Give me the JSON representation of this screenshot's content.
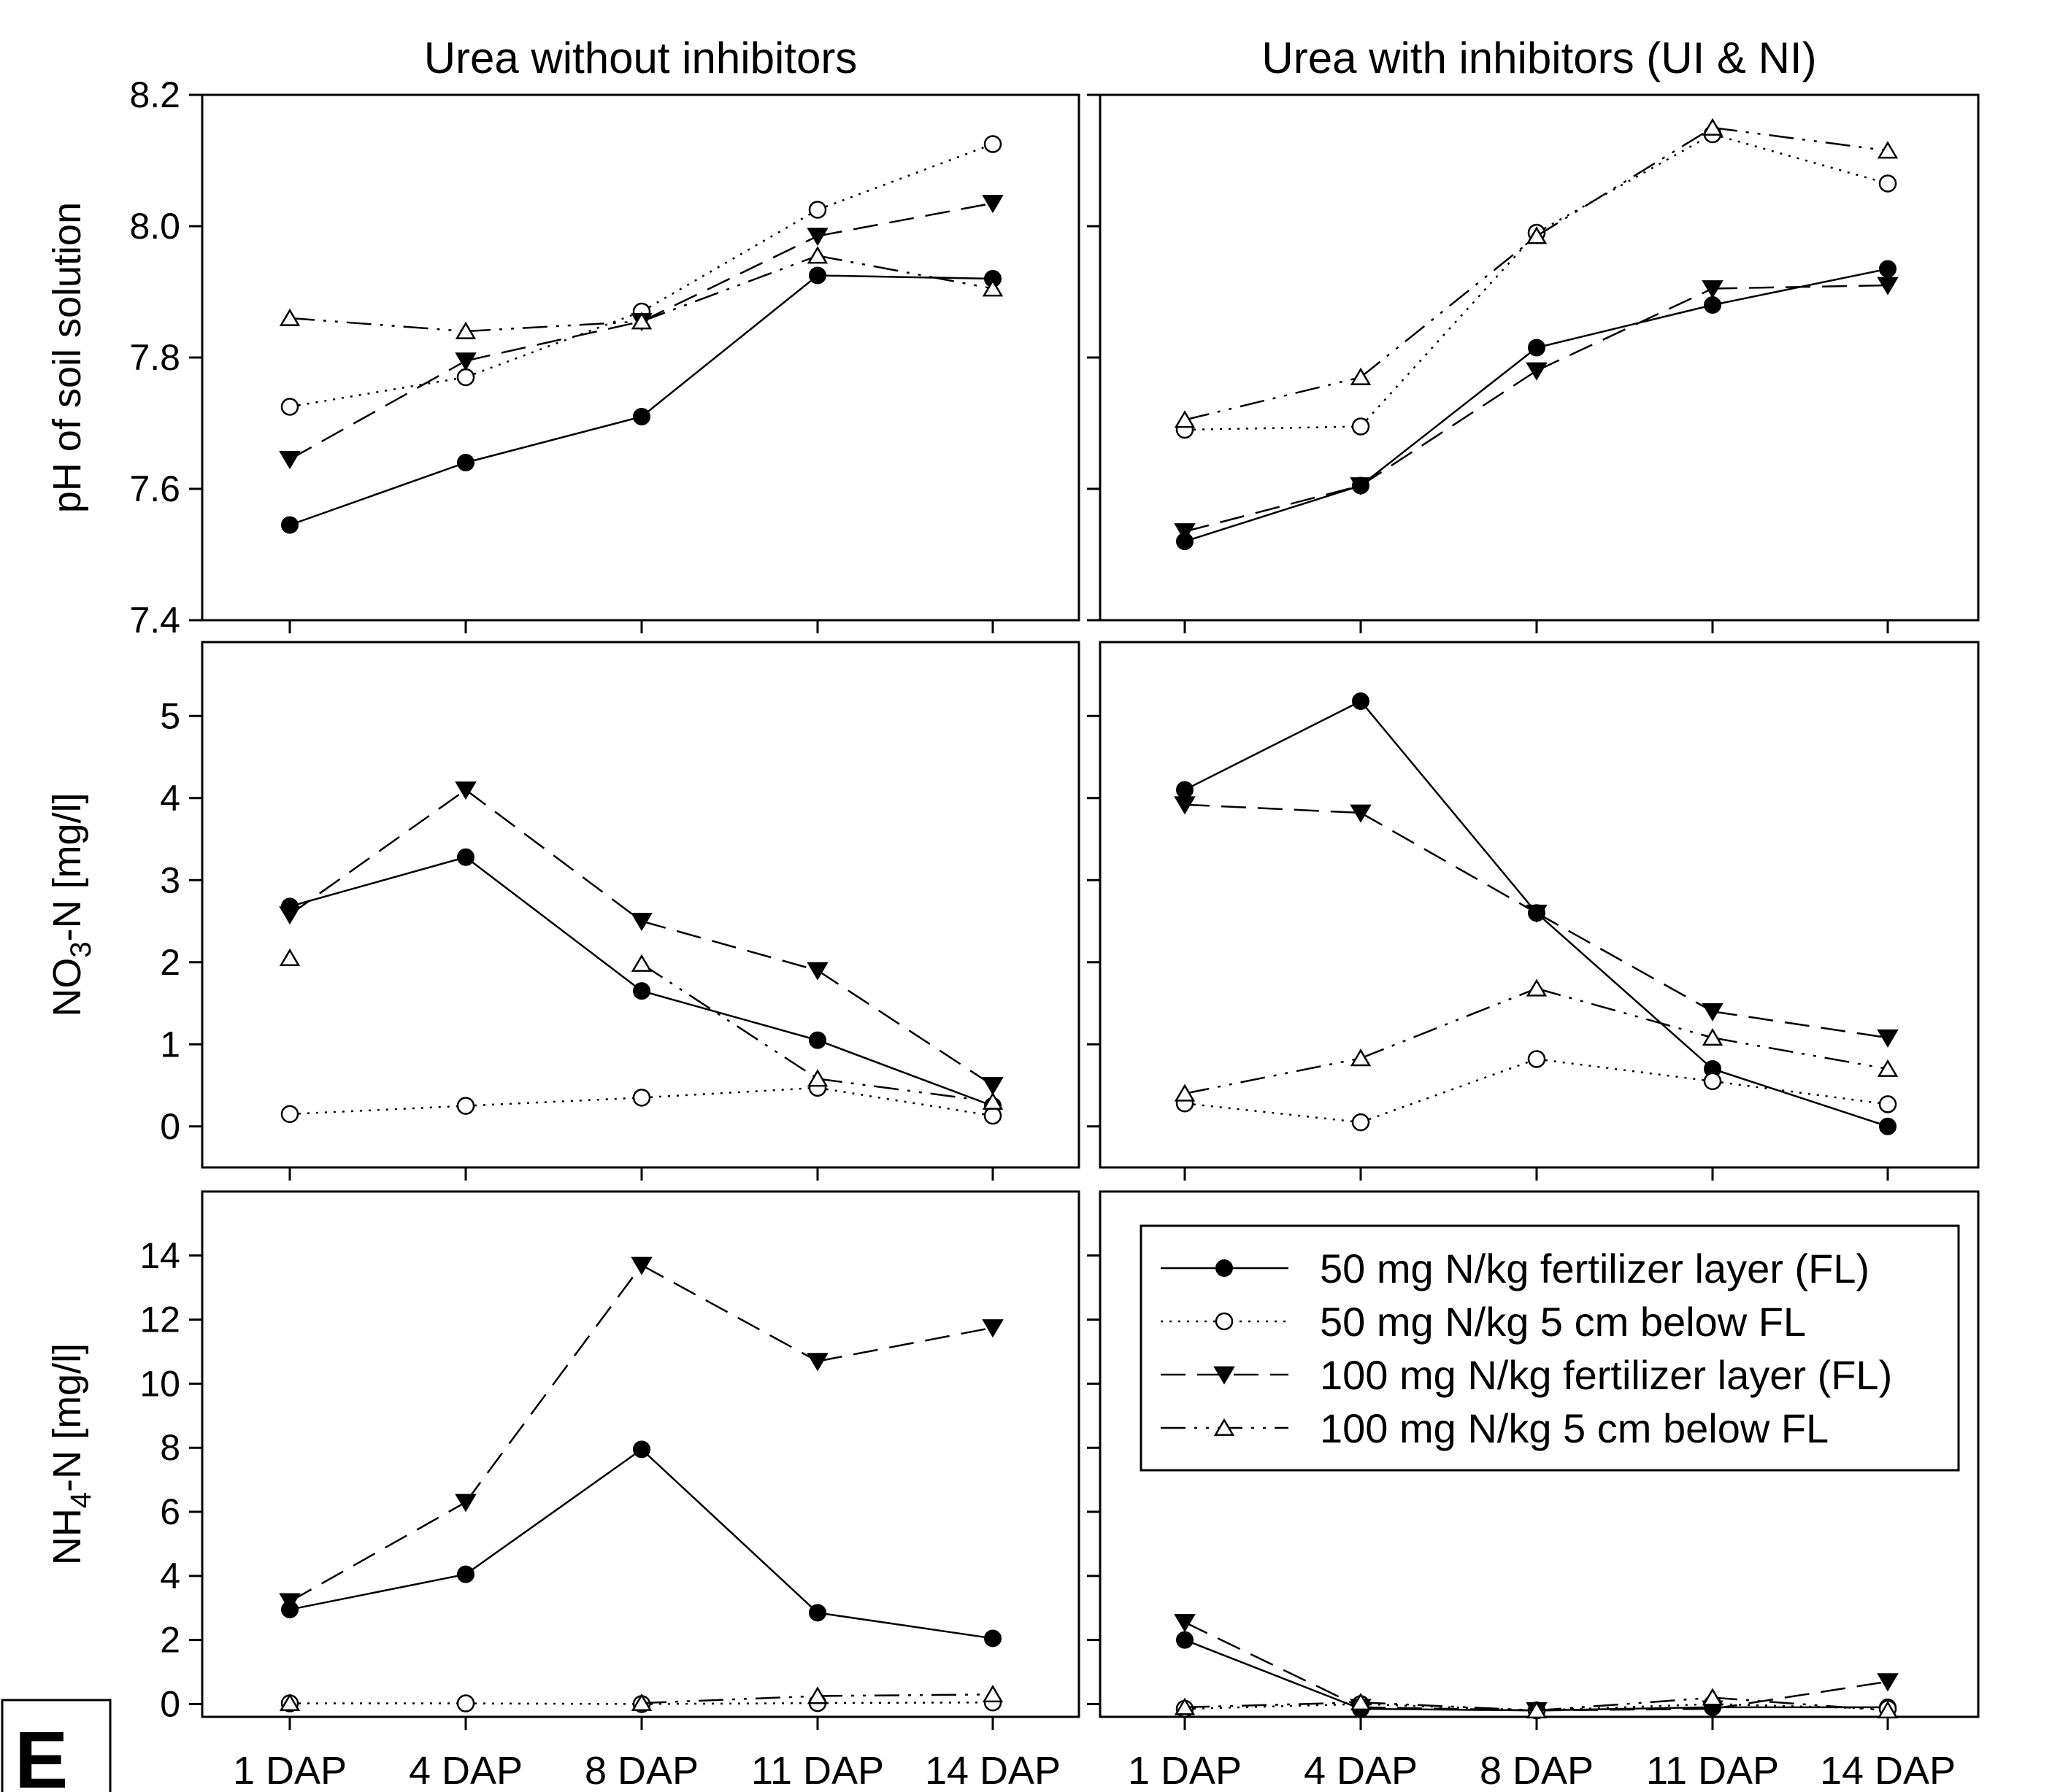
{
  "panel_letter": "E",
  "chart_data": {
    "type": "line",
    "columns": [
      {
        "title": "Urea without inhibitors"
      },
      {
        "title": "Urea with inhibitors (UI & NI)"
      }
    ],
    "x": [
      "1 DAP",
      "4 DAP",
      "8 DAP",
      "11 DAP",
      "14 DAP"
    ],
    "legend": {
      "placement": "inside, bottom-right panel, top",
      "entries": [
        {
          "name": "50 mg N/kg fertilizer layer (FL)",
          "line": "solid",
          "marker": "filled-circle"
        },
        {
          "name": "50 mg N/kg 5 cm below FL",
          "line": "dotted",
          "marker": "open-circle"
        },
        {
          "name": "100 mg N/kg fertilizer layer (FL)",
          "line": "dashed",
          "marker": "filled-triangle-down"
        },
        {
          "name": "100 mg N/kg 5 cm below FL",
          "line": "dash-dot-dot",
          "marker": "open-triangle-up"
        }
      ]
    },
    "rows": [
      {
        "ylabel": "pH of soil solution",
        "ylim": [
          7.4,
          8.2
        ],
        "yticks": [
          "7.4",
          "7.6",
          "7.8",
          "8.0",
          "8.2"
        ],
        "panels": [
          {
            "series": [
              {
                "values": [
                  7.545,
                  7.64,
                  7.71,
                  7.925,
                  7.92
                ]
              },
              {
                "values": [
                  7.725,
                  7.77,
                  7.87,
                  8.025,
                  8.125
                ]
              },
              {
                "values": [
                  7.645,
                  7.795,
                  7.855,
                  7.985,
                  8.035
                ]
              },
              {
                "values": [
                  7.86,
                  7.84,
                  7.855,
                  7.955,
                  7.905
                ]
              }
            ]
          },
          {
            "series": [
              {
                "values": [
                  7.52,
                  7.605,
                  7.815,
                  7.88,
                  7.935
                ]
              },
              {
                "values": [
                  7.69,
                  7.695,
                  7.99,
                  8.14,
                  8.065
                ]
              },
              {
                "values": [
                  7.535,
                  7.605,
                  7.78,
                  7.905,
                  7.91
                ]
              },
              {
                "values": [
                  7.705,
                  7.77,
                  7.985,
                  8.15,
                  8.115
                ]
              }
            ]
          }
        ]
      },
      {
        "ylabel_main": "NO",
        "ylabel_sub": "3",
        "ylabel_rest": "-N [mg/l]",
        "ylim": [
          -0.5,
          5.9
        ],
        "yticks": [
          "0",
          "1",
          "2",
          "3",
          "4",
          "5"
        ],
        "panels": [
          {
            "series": [
              {
                "values": [
                  2.68,
                  3.28,
                  1.65,
                  1.05,
                  0.25
                ]
              },
              {
                "values": [
                  0.15,
                  0.25,
                  0.35,
                  0.47,
                  0.13
                ]
              },
              {
                "values": [
                  2.58,
                  4.1,
                  2.5,
                  1.9,
                  0.5
                ]
              },
              {
                "values": [
                  2.05,
                  null,
                  1.98,
                  0.58,
                  0.3
                ]
              }
            ]
          },
          {
            "series": [
              {
                "values": [
                  4.1,
                  5.18,
                  2.6,
                  0.7,
                  0.0
                ]
              },
              {
                "values": [
                  0.28,
                  0.05,
                  0.82,
                  0.55,
                  0.27
                ]
              },
              {
                "values": [
                  3.92,
                  3.82,
                  2.6,
                  1.4,
                  1.08
                ]
              },
              {
                "values": [
                  0.4,
                  0.83,
                  1.68,
                  1.08,
                  0.7
                ]
              }
            ]
          }
        ]
      },
      {
        "ylabel_main": "NH",
        "ylabel_sub": "4",
        "ylabel_rest": "-N [mg/l]",
        "ylim": [
          -0.4,
          16.0
        ],
        "yticks": [
          "0",
          "2",
          "4",
          "6",
          "8",
          "10",
          "12",
          "14"
        ],
        "panels": [
          {
            "series": [
              {
                "values": [
                  2.95,
                  4.05,
                  7.95,
                  2.85,
                  2.05
                ]
              },
              {
                "values": [
                  0.02,
                  0.02,
                  0.0,
                  0.03,
                  0.05
                ]
              },
              {
                "values": [
                  3.2,
                  6.3,
                  13.7,
                  10.7,
                  11.75
                ]
              },
              {
                "values": [
                  0.03,
                  null,
                  0.03,
                  0.25,
                  0.3
                ]
              }
            ]
          },
          {
            "series": [
              {
                "values": [
                  2.0,
                  -0.15,
                  -0.2,
                  -0.1,
                  -0.1
                ]
              },
              {
                "values": [
                  -0.15,
                  0.0,
                  -0.2,
                  0.0,
                  -0.15
                ]
              },
              {
                "values": [
                  2.55,
                  -0.1,
                  -0.2,
                  -0.15,
                  0.7
                ]
              },
              {
                "values": [
                  -0.1,
                  0.05,
                  -0.2,
                  0.2,
                  -0.2
                ]
              }
            ]
          }
        ]
      }
    ]
  }
}
